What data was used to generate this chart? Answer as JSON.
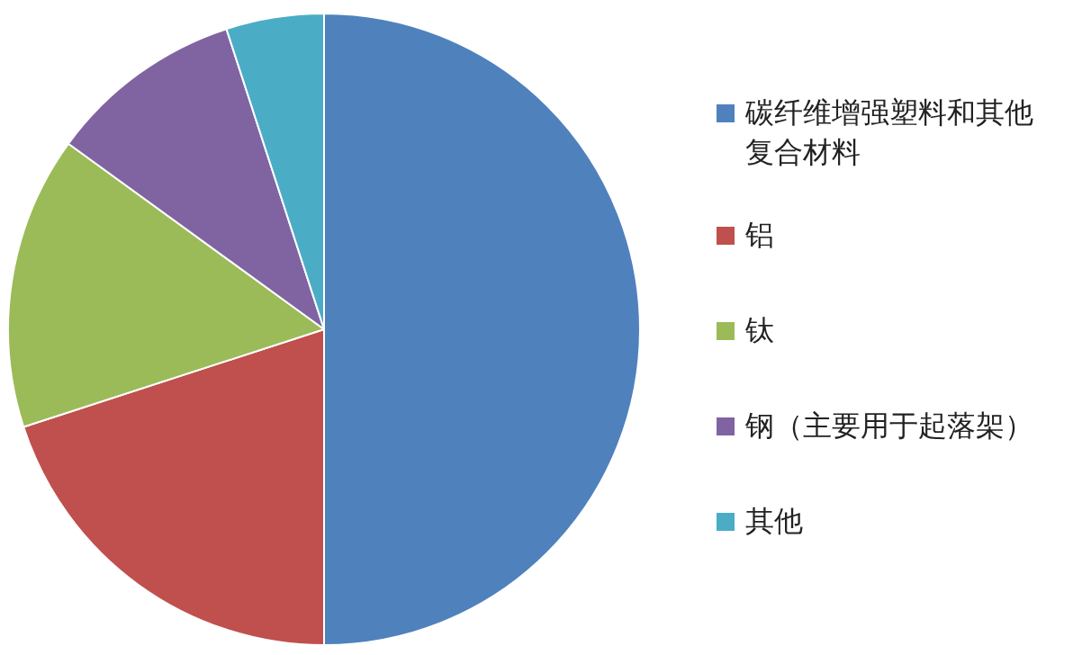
{
  "chart_data": {
    "type": "pie",
    "categories": [
      "碳纤维增强塑料和其他复合材料",
      "铝",
      "钛",
      "钢（主要用于起落架）",
      "其他"
    ],
    "values": [
      50,
      20,
      15,
      10,
      5
    ],
    "colors": [
      "#4f81bd",
      "#c0504d",
      "#9bbb59",
      "#8064a2",
      "#4bacc6"
    ],
    "legend": "right"
  }
}
